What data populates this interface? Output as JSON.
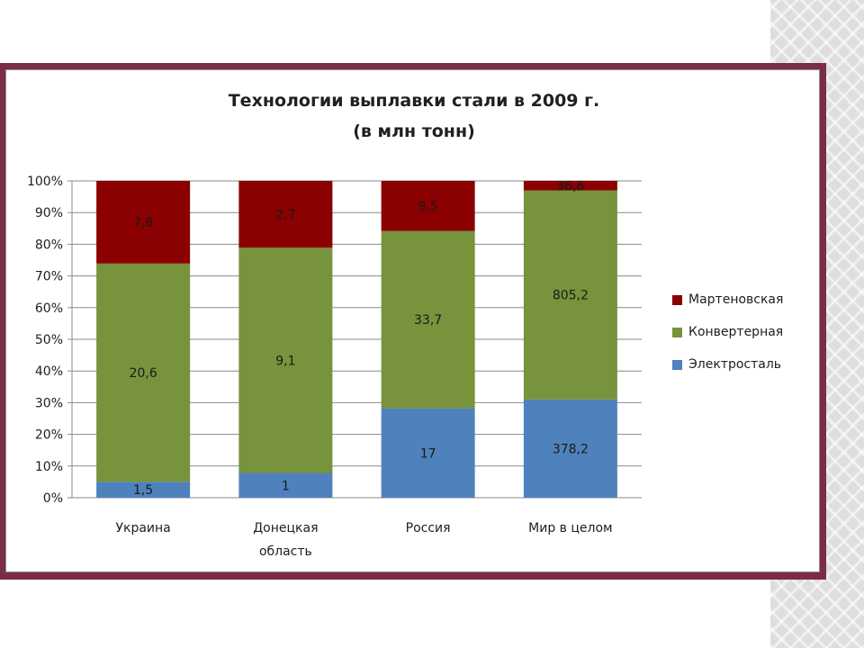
{
  "chart_data": {
    "type": "bar",
    "stacked": true,
    "normalized": true,
    "title": "Технологии выплавки стали в 2009 г.",
    "subtitle": "(в млн тонн)",
    "xlabel": "",
    "ylabel": "",
    "ylim": [
      0,
      100
    ],
    "yticks": [
      "0%",
      "10%",
      "20%",
      "30%",
      "40%",
      "50%",
      "60%",
      "70%",
      "80%",
      "90%",
      "100%"
    ],
    "grid": true,
    "legend_position": "right",
    "categories": [
      {
        "lines": [
          "Украина"
        ]
      },
      {
        "lines": [
          "Донецкая",
          "область"
        ]
      },
      {
        "lines": [
          "Россия"
        ]
      },
      {
        "lines": [
          "Мир в целом"
        ]
      }
    ],
    "series": [
      {
        "name": "Электросталь",
        "color": "#4f81bd",
        "values": [
          1.5,
          1,
          17,
          378.2
        ],
        "labels": [
          "1,5",
          "1",
          "17",
          "378,2"
        ]
      },
      {
        "name": "Конвертерная",
        "color": "#77933c",
        "values": [
          20.6,
          9.1,
          33.7,
          805.2
        ],
        "labels": [
          "20,6",
          "9,1",
          "33,7",
          "805,2"
        ]
      },
      {
        "name": "Мартеновская",
        "color": "#8b0000",
        "values": [
          7.8,
          2.7,
          9.5,
          36.6
        ],
        "labels": [
          "7,8",
          "2,7",
          "9,5",
          "36,6"
        ]
      }
    ],
    "legend_order": [
      2,
      1,
      0
    ]
  }
}
